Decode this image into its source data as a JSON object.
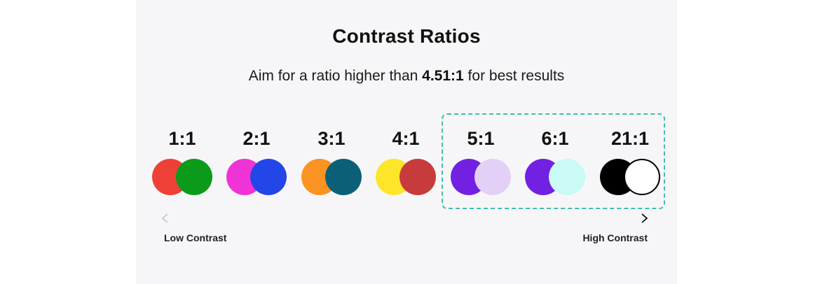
{
  "title": "Contrast Ratios",
  "subtitle": {
    "prefix": "Aim for a ratio higher than ",
    "emphasis": "4.51:1",
    "suffix": " for best results"
  },
  "pairs": [
    {
      "ratio": "1:1",
      "back": "#ee4037",
      "front": "#0c9a1b"
    },
    {
      "ratio": "2:1",
      "back": "#f033d6",
      "front": "#2346e8"
    },
    {
      "ratio": "3:1",
      "back": "#fb9322",
      "front": "#0b6078"
    },
    {
      "ratio": "4:1",
      "back": "#fde52a",
      "front": "#c83b3d"
    },
    {
      "ratio": "5:1",
      "back": "#7220e2",
      "front": "#e3d0f7"
    },
    {
      "ratio": "6:1",
      "back": "#7220e2",
      "front": "#c9faf4"
    },
    {
      "ratio": "21:1",
      "back": "#000000",
      "front": "#ffffff"
    }
  ],
  "highlight_color": "#3fbfad",
  "scale": {
    "low_label": "Low Contrast",
    "high_label": "High Contrast"
  }
}
